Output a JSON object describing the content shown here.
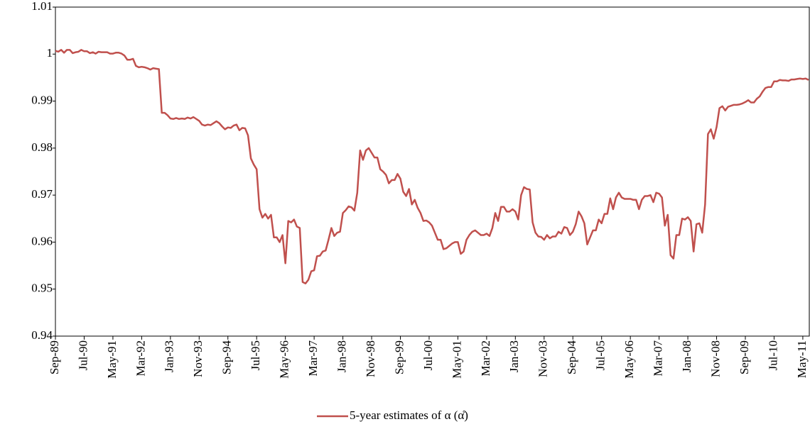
{
  "chart_data": {
    "type": "line",
    "categories": [
      "Sep-89",
      null,
      null,
      null,
      null,
      null,
      null,
      null,
      null,
      null,
      "Jul-90",
      null,
      null,
      null,
      null,
      null,
      null,
      null,
      null,
      null,
      "May-91",
      null,
      null,
      null,
      null,
      null,
      null,
      null,
      null,
      null,
      "Mar-92",
      null,
      null,
      null,
      null,
      null,
      null,
      null,
      null,
      null,
      "Jan-93",
      null,
      null,
      null,
      null,
      null,
      null,
      null,
      null,
      null,
      "Nov-93",
      null,
      null,
      null,
      null,
      null,
      null,
      null,
      null,
      null,
      "Sep-94",
      null,
      null,
      null,
      null,
      null,
      null,
      null,
      null,
      null,
      "Jul-95",
      null,
      null,
      null,
      null,
      null,
      null,
      null,
      null,
      null,
      "May-96",
      null,
      null,
      null,
      null,
      null,
      null,
      null,
      null,
      null,
      "Mar-97",
      null,
      null,
      null,
      null,
      null,
      null,
      null,
      null,
      null,
      "Jan-98",
      null,
      null,
      null,
      null,
      null,
      null,
      null,
      null,
      null,
      "Nov-98",
      null,
      null,
      null,
      null,
      null,
      null,
      null,
      null,
      null,
      "Sep-99",
      null,
      null,
      null,
      null,
      null,
      null,
      null,
      null,
      null,
      "Jul-00",
      null,
      null,
      null,
      null,
      null,
      null,
      null,
      null,
      null,
      "May-01",
      null,
      null,
      null,
      null,
      null,
      null,
      null,
      null,
      null,
      "Mar-02",
      null,
      null,
      null,
      null,
      null,
      null,
      null,
      null,
      null,
      "Jan-03",
      null,
      null,
      null,
      null,
      null,
      null,
      null,
      null,
      null,
      "Nov-03",
      null,
      null,
      null,
      null,
      null,
      null,
      null,
      null,
      null,
      "Sep-04",
      null,
      null,
      null,
      null,
      null,
      null,
      null,
      null,
      null,
      "Jul-05",
      null,
      null,
      null,
      null,
      null,
      null,
      null,
      null,
      null,
      "May-06",
      null,
      null,
      null,
      null,
      null,
      null,
      null,
      null,
      null,
      "Mar-07",
      null,
      null,
      null,
      null,
      null,
      null,
      null,
      null,
      null,
      "Jan-08",
      null,
      null,
      null,
      null,
      null,
      null,
      null,
      null,
      null,
      "Nov-08",
      null,
      null,
      null,
      null,
      null,
      null,
      null,
      null,
      null,
      "Sep-09",
      null,
      null,
      null,
      null,
      null,
      null,
      null,
      null,
      null,
      "Jul-10",
      null,
      null,
      null,
      null,
      null,
      null,
      null,
      null,
      null,
      "May-11",
      null,
      null
    ],
    "series": [
      {
        "name": "5-year estimates of α (α̊)",
        "color": "#c0504d",
        "values": [
          1.0007,
          1.0005,
          1.0009,
          1.0003,
          1.0009,
          1.0009,
          1.0002,
          1.0004,
          1.0005,
          1.0009,
          1.0006,
          1.0006,
          1.0002,
          1.0004,
          1.0001,
          1.0005,
          1.0004,
          1.0004,
          1.0004,
          1.0001,
          1.0001,
          1.0003,
          1.0003,
          1.0001,
          0.9997,
          0.9988,
          0.9988,
          0.999,
          0.9975,
          0.9972,
          0.9973,
          0.9972,
          0.997,
          0.9967,
          0.997,
          0.9969,
          0.9968,
          0.9875,
          0.9875,
          0.987,
          0.9863,
          0.9862,
          0.9864,
          0.9862,
          0.9863,
          0.9862,
          0.9865,
          0.9863,
          0.9866,
          0.9862,
          0.9858,
          0.985,
          0.9848,
          0.985,
          0.9849,
          0.9853,
          0.9857,
          0.9853,
          0.9846,
          0.984,
          0.9844,
          0.9843,
          0.9848,
          0.985,
          0.9838,
          0.9843,
          0.9842,
          0.9827,
          0.9778,
          0.9765,
          0.9755,
          0.967,
          0.9652,
          0.966,
          0.965,
          0.9658,
          0.961,
          0.961,
          0.96,
          0.9615,
          0.9555,
          0.9645,
          0.9642,
          0.9648,
          0.9633,
          0.963,
          0.9515,
          0.9512,
          0.952,
          0.9538,
          0.954,
          0.957,
          0.9571,
          0.958,
          0.9582,
          0.9605,
          0.963,
          0.9613,
          0.962,
          0.9622,
          0.9662,
          0.9668,
          0.9676,
          0.9674,
          0.9667,
          0.9705,
          0.9795,
          0.9775,
          0.9795,
          0.98,
          0.979,
          0.978,
          0.978,
          0.9755,
          0.975,
          0.9743,
          0.9725,
          0.9732,
          0.9732,
          0.9745,
          0.9735,
          0.9707,
          0.9698,
          0.9713,
          0.968,
          0.969,
          0.9673,
          0.9662,
          0.9645,
          0.9646,
          0.9642,
          0.9635,
          0.962,
          0.9605,
          0.9605,
          0.9585,
          0.9587,
          0.9592,
          0.9597,
          0.96,
          0.96,
          0.9575,
          0.958,
          0.9605,
          0.9615,
          0.9622,
          0.9625,
          0.962,
          0.9615,
          0.9615,
          0.9618,
          0.9613,
          0.963,
          0.9662,
          0.9645,
          0.9675,
          0.9675,
          0.9665,
          0.9665,
          0.967,
          0.9665,
          0.9648,
          0.97,
          0.9717,
          0.9713,
          0.9712,
          0.9642,
          0.962,
          0.9612,
          0.9611,
          0.9605,
          0.9615,
          0.9608,
          0.9612,
          0.9612,
          0.9622,
          0.9618,
          0.9632,
          0.963,
          0.9615,
          0.9622,
          0.9638,
          0.9665,
          0.9655,
          0.964,
          0.9595,
          0.961,
          0.9625,
          0.9625,
          0.9648,
          0.964,
          0.966,
          0.966,
          0.9693,
          0.967,
          0.9695,
          0.9705,
          0.9695,
          0.9692,
          0.9692,
          0.9692,
          0.969,
          0.969,
          0.967,
          0.969,
          0.9698,
          0.9698,
          0.97,
          0.9685,
          0.9705,
          0.9703,
          0.9695,
          0.9635,
          0.9658,
          0.9572,
          0.9565,
          0.9615,
          0.9615,
          0.965,
          0.9648,
          0.9653,
          0.9645,
          0.958,
          0.9638,
          0.964,
          0.962,
          0.968,
          0.983,
          0.984,
          0.982,
          0.9845,
          0.9885,
          0.9889,
          0.988,
          0.9888,
          0.989,
          0.9892,
          0.9892,
          0.9893,
          0.9895,
          0.9898,
          0.9902,
          0.9897,
          0.9897,
          0.9905,
          0.991,
          0.992,
          0.9928,
          0.993,
          0.993,
          0.9942,
          0.9942,
          0.9945,
          0.9944,
          0.9944,
          0.9943,
          0.9946,
          0.9946,
          0.9947,
          0.9948,
          0.9947,
          0.9948,
          0.9945
        ]
      }
    ],
    "ylim": [
      0.94,
      1.01
    ],
    "yticks": [
      0.94,
      0.95,
      0.96,
      0.97,
      0.98,
      0.99,
      1,
      1.01
    ],
    "grid": false,
    "legend": "bottom"
  }
}
